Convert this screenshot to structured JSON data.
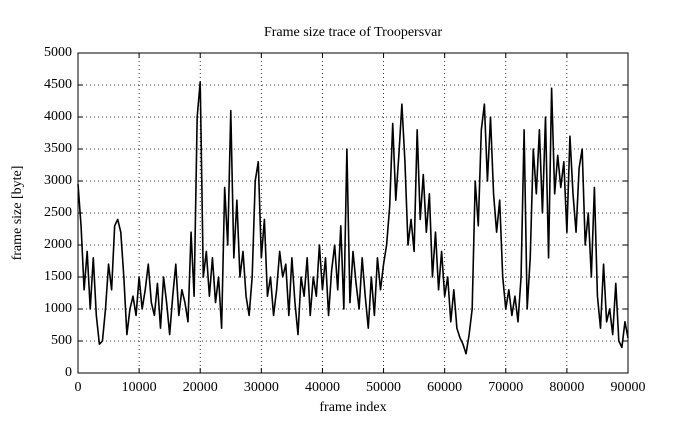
{
  "chart_data": {
    "type": "line",
    "title": "Frame size trace of Troopersvar",
    "xlabel": "frame index",
    "ylabel": "frame size [byte]",
    "color": "#000000",
    "grid": true,
    "xlim": [
      0,
      90000
    ],
    "ylim": [
      0,
      5000
    ],
    "xticks": [
      0,
      10000,
      20000,
      30000,
      40000,
      50000,
      60000,
      70000,
      80000,
      90000
    ],
    "yticks": [
      0,
      500,
      1000,
      1500,
      2000,
      2500,
      3000,
      3500,
      4000,
      4500,
      5000
    ],
    "x": [
      0,
      500,
      1000,
      1500,
      2000,
      2500,
      3000,
      3500,
      4000,
      4500,
      5000,
      5500,
      6000,
      6500,
      7000,
      7500,
      8000,
      8500,
      9000,
      9500,
      10000,
      10500,
      11000,
      11500,
      12000,
      12500,
      13000,
      13500,
      14000,
      14500,
      15000,
      15500,
      16000,
      16500,
      17000,
      17500,
      18000,
      18500,
      19000,
      19500,
      20000,
      20500,
      21000,
      21500,
      22000,
      22500,
      23000,
      23500,
      24000,
      24500,
      25000,
      25500,
      26000,
      26500,
      27000,
      27500,
      28000,
      28500,
      29000,
      29500,
      30000,
      30500,
      31000,
      31500,
      32000,
      32500,
      33000,
      33500,
      34000,
      34500,
      35000,
      35500,
      36000,
      36500,
      37000,
      37500,
      38000,
      38500,
      39000,
      39500,
      40000,
      40500,
      41000,
      41500,
      42000,
      42500,
      43000,
      43500,
      44000,
      44500,
      45000,
      45500,
      46000,
      46500,
      47000,
      47500,
      48000,
      48500,
      49000,
      49500,
      50000,
      50500,
      51000,
      51500,
      52000,
      52500,
      53000,
      53500,
      54000,
      54500,
      55000,
      55500,
      56000,
      56500,
      57000,
      57500,
      58000,
      58500,
      59000,
      59500,
      60000,
      60500,
      61000,
      61500,
      62000,
      62500,
      63000,
      63500,
      64000,
      64500,
      65000,
      65500,
      66000,
      66500,
      67000,
      67500,
      68000,
      68500,
      69000,
      69500,
      70000,
      70500,
      71000,
      71500,
      72000,
      72500,
      73000,
      73500,
      74000,
      74500,
      75000,
      75500,
      76000,
      76500,
      77000,
      77500,
      78000,
      78500,
      79000,
      79500,
      80000,
      80500,
      81000,
      81500,
      82000,
      82500,
      83000,
      83500,
      84000,
      84500,
      85000,
      85500,
      86000,
      86500,
      87000,
      87500,
      88000,
      88500,
      89000,
      89500,
      90000
    ],
    "values": [
      2950,
      2300,
      1300,
      1900,
      1000,
      1800,
      900,
      450,
      500,
      1000,
      1700,
      1300,
      2300,
      2400,
      2200,
      1500,
      600,
      1000,
      1200,
      900,
      1500,
      1000,
      1300,
      1700,
      1100,
      900,
      1400,
      700,
      1500,
      1100,
      600,
      1200,
      1700,
      900,
      1300,
      1100,
      800,
      2200,
      1200,
      4000,
      4550,
      1500,
      1900,
      1200,
      1800,
      1100,
      1500,
      700,
      2900,
      2000,
      4100,
      1800,
      2700,
      1500,
      1900,
      1200,
      900,
      1500,
      3000,
      3300,
      1800,
      2400,
      1200,
      1500,
      900,
      1300,
      1900,
      1500,
      1700,
      900,
      1800,
      1100,
      600,
      1500,
      1200,
      1800,
      900,
      1500,
      1200,
      2000,
      1300,
      1800,
      900,
      1600,
      2000,
      1300,
      2300,
      1000,
      3500,
      1100,
      1900,
      1400,
      1000,
      1800,
      1200,
      700,
      1500,
      900,
      1800,
      1300,
      1700,
      2000,
      2600,
      3900,
      2700,
      3400,
      4200,
      3300,
      2000,
      2400,
      1900,
      3800,
      2400,
      3100,
      2200,
      2800,
      1500,
      2200,
      1300,
      1900,
      1200,
      1500,
      800,
      1300,
      700,
      550,
      450,
      300,
      600,
      1000,
      3000,
      2300,
      3800,
      4200,
      3000,
      4000,
      2800,
      2200,
      2700,
      1500,
      1000,
      1300,
      900,
      1200,
      800,
      1500,
      3800,
      1000,
      1800,
      3500,
      2800,
      3800,
      2500,
      4000,
      1800,
      4450,
      2800,
      3400,
      2900,
      3300,
      2200,
      3700,
      2800,
      2200,
      3200,
      3500,
      2000,
      2500,
      1500,
      2900,
      1200,
      700,
      1700,
      800,
      1000,
      600,
      1400,
      500,
      400,
      800,
      550
    ]
  }
}
